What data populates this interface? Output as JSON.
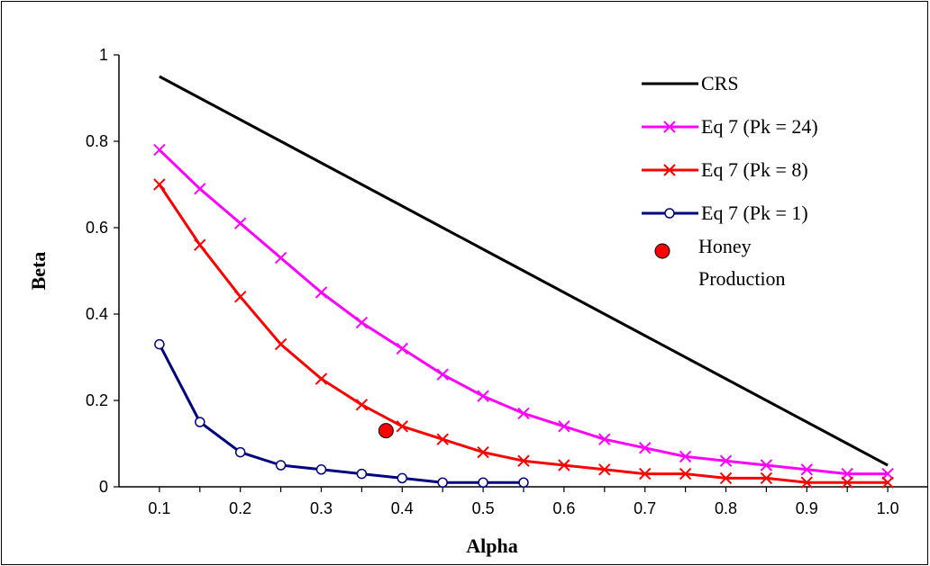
{
  "chart_data": {
    "type": "line",
    "xlabel": "Alpha",
    "ylabel": "Beta",
    "xlim": [
      0.05,
      1.05
    ],
    "ylim": [
      0,
      1
    ],
    "x_ticks": [
      "0.1",
      "0.2",
      "0.3",
      "0.4",
      "0.5",
      "0.6",
      "0.7",
      "0.8",
      "0.9",
      "1.0"
    ],
    "y_ticks": [
      "0",
      "0.2",
      "0.4",
      "0.6",
      "0.8",
      "1"
    ],
    "grid": false,
    "legend_position": "top-right",
    "series": [
      {
        "name": "CRS",
        "color": "#000000",
        "marker": "none",
        "x": [
          0.1,
          0.15,
          0.2,
          0.25,
          0.3,
          0.35,
          0.4,
          0.45,
          0.5,
          0.55,
          0.6,
          0.65,
          0.7,
          0.75,
          0.8,
          0.85,
          0.9,
          0.95,
          1.0
        ],
        "y": [
          0.95,
          0.9,
          0.85,
          0.8,
          0.75,
          0.7,
          0.65,
          0.6,
          0.55,
          0.5,
          0.45,
          0.4,
          0.35,
          0.3,
          0.25,
          0.2,
          0.15,
          0.1,
          0.05
        ]
      },
      {
        "name": "Eq 7 (Pk = 24)",
        "color": "#ff00ff",
        "marker": "x",
        "x": [
          0.1,
          0.15,
          0.2,
          0.25,
          0.3,
          0.35,
          0.4,
          0.45,
          0.5,
          0.55,
          0.6,
          0.65,
          0.7,
          0.75,
          0.8,
          0.85,
          0.9,
          0.95,
          1.0
        ],
        "y": [
          0.78,
          0.69,
          0.61,
          0.53,
          0.45,
          0.38,
          0.32,
          0.26,
          0.21,
          0.17,
          0.14,
          0.11,
          0.09,
          0.07,
          0.06,
          0.05,
          0.04,
          0.03,
          0.03
        ]
      },
      {
        "name": "Eq 7 (Pk = 8)",
        "color": "#ff0000",
        "marker": "x",
        "x": [
          0.1,
          0.15,
          0.2,
          0.25,
          0.3,
          0.35,
          0.4,
          0.45,
          0.5,
          0.55,
          0.6,
          0.65,
          0.7,
          0.75,
          0.8,
          0.85,
          0.9,
          0.95,
          1.0
        ],
        "y": [
          0.7,
          0.56,
          0.44,
          0.33,
          0.25,
          0.19,
          0.14,
          0.11,
          0.08,
          0.06,
          0.05,
          0.04,
          0.03,
          0.03,
          0.02,
          0.02,
          0.01,
          0.01,
          0.01
        ]
      },
      {
        "name": "Eq 7 (Pk = 1)",
        "color": "#000080",
        "marker": "circle-open",
        "x": [
          0.1,
          0.15,
          0.2,
          0.25,
          0.3,
          0.35,
          0.4,
          0.45,
          0.5,
          0.55
        ],
        "y": [
          0.33,
          0.15,
          0.08,
          0.05,
          0.04,
          0.03,
          0.02,
          0.01,
          0.01,
          0.01
        ]
      },
      {
        "name": "Honey Production",
        "color": "#ff0000",
        "marker": "filled-circle",
        "x": [
          0.38
        ],
        "y": [
          0.13
        ]
      }
    ],
    "legend": {
      "crs": "CRS",
      "pk24": "Eq 7 (Pk = 24)",
      "pk8": "Eq 7 (Pk = 8)",
      "pk1": "Eq 7 (Pk = 1)",
      "honey_line1": "Honey",
      "honey_line2": "Production"
    }
  }
}
